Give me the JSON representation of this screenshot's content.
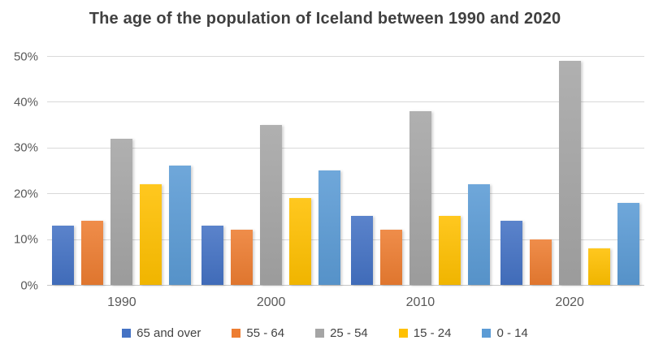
{
  "chart_data": {
    "type": "bar",
    "title": "The age of the population of Iceland between 1990 and 2020",
    "categories": [
      "1990",
      "2000",
      "2010",
      "2020"
    ],
    "series": [
      {
        "name": "65 and over",
        "color": "#4472C4",
        "values": [
          13,
          13,
          15,
          14
        ]
      },
      {
        "name": "55 - 64",
        "color": "#ED7D31",
        "values": [
          14,
          12,
          12,
          10
        ]
      },
      {
        "name": "25 - 54",
        "color": "#A5A5A5",
        "values": [
          32,
          35,
          38,
          49
        ]
      },
      {
        "name": "15 - 24",
        "color": "#FFC000",
        "values": [
          22,
          19,
          15,
          8
        ]
      },
      {
        "name": "0 - 14",
        "color": "#5B9BD5",
        "values": [
          26,
          25,
          22,
          18
        ]
      }
    ],
    "xlabel": "",
    "ylabel": "",
    "y_ticks": [
      "0%",
      "10%",
      "20%",
      "30%",
      "40%",
      "50%"
    ],
    "ylim": [
      0,
      50
    ],
    "grid": true,
    "legend_position": "bottom",
    "colors": {
      "title_text": "#404040",
      "axis_text": "#595959",
      "gridline": "#D9D9D9",
      "background": "#FFFFFF"
    }
  }
}
